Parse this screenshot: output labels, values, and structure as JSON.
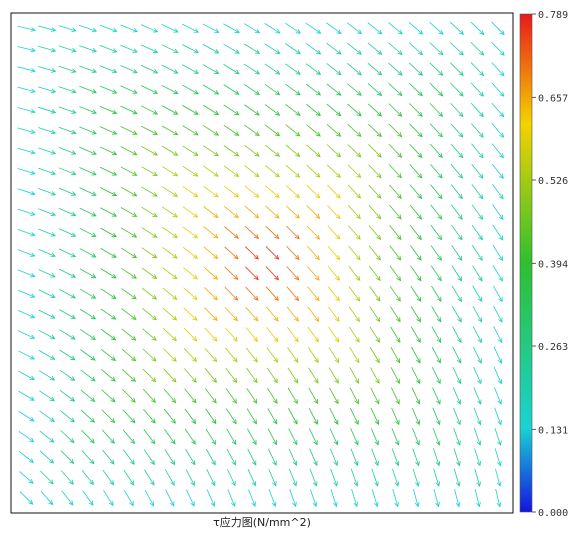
{
  "chart_data": {
    "type": "vector-field",
    "title": "τ应力图(N/mm^2)",
    "field": {
      "description_type": "shear-stress-vectors",
      "grid": {
        "nx": 24,
        "ny": 24
      },
      "magnitude_range": [
        0.0,
        0.789
      ],
      "pattern": "vortex"
    },
    "colorbar": {
      "ticks": [
        "0.789",
        "0.657",
        "0.526",
        "0.394",
        "0.263",
        "0.131",
        "0.000"
      ],
      "values": [
        0.789,
        0.657,
        0.526,
        0.394,
        0.263,
        0.131,
        0.0
      ],
      "colors": [
        "#e81a1a",
        "#f5d200",
        "#2ec02e",
        "#19d3d3",
        "#1414e0"
      ]
    }
  }
}
